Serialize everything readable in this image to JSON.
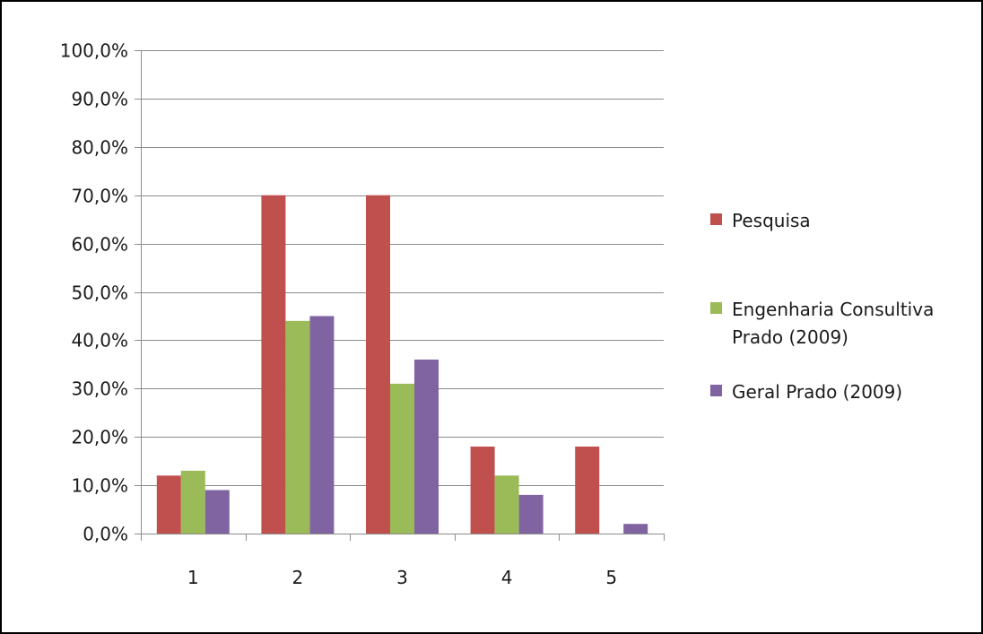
{
  "chart_data": {
    "type": "bar",
    "categories": [
      "1",
      "2",
      "3",
      "4",
      "5"
    ],
    "series": [
      {
        "name": "Pesquisa",
        "color": "#C0504D",
        "values": [
          12,
          70,
          70,
          18,
          18
        ]
      },
      {
        "name": "Engenharia Consultiva Prado (2009)",
        "color": "#9BBB59",
        "values": [
          13,
          44,
          31,
          12,
          null
        ]
      },
      {
        "name": "Geral Prado (2009)",
        "color": "#8064A2",
        "values": [
          9,
          45,
          36,
          8,
          2
        ]
      }
    ],
    "ylim": [
      0,
      100
    ],
    "y_ticks": [
      "0,0%",
      "10,0%",
      "20,0%",
      "30,0%",
      "40,0%",
      "50,0%",
      "60,0%",
      "70,0%",
      "80,0%",
      "90,0%",
      "100,0%"
    ],
    "title": "",
    "xlabel": "",
    "ylabel": "",
    "grid": true,
    "legend_position": "right"
  }
}
